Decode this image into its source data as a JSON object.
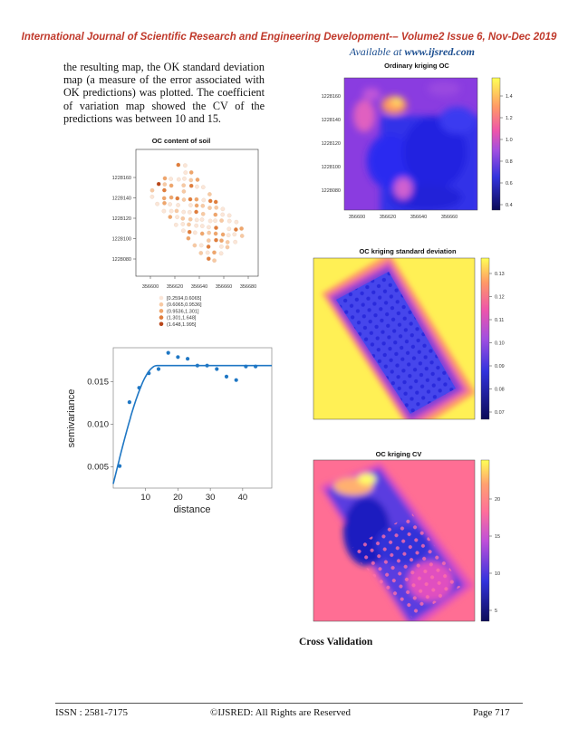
{
  "header": {
    "journal": "International Journal of Scientific Research and Engineering Development-– Volume2 Issue 6, Nov-Dec 2019",
    "available_prefix": "Available at ",
    "available_url": "www.ijsred.com"
  },
  "body_text": "the resulting map, the OK standard deviation map (a measure of the error associated with OK predictions) was plotted. The coefficient of variation map showed the CV of the predictions was between 10 and 15.",
  "fig_soil": {
    "title": "OC content of soil",
    "y_ticks": [
      "1228160",
      "1228140",
      "1228120",
      "1228100",
      "1228080"
    ],
    "x_ticks": [
      "356600",
      "356620",
      "356640",
      "356660",
      "356680"
    ],
    "legend": [
      "[0.2594,0.6065]",
      "(0.6065,0.9536]",
      "(0.9536,1.301]",
      "(1.301,1.648]",
      "(1.648,1.995]"
    ],
    "colors": [
      "#fbe6d8",
      "#f7c9a3",
      "#efa56b",
      "#e07d3c",
      "#b8461a"
    ]
  },
  "fig_ok": {
    "title": "Ordinary kriging OC",
    "y_ticks": [
      "1228160",
      "1228140",
      "1228120",
      "1228100",
      "1228080"
    ],
    "x_ticks": [
      "356600",
      "356620",
      "356640",
      "356660"
    ],
    "cbar_ticks": [
      "1.4",
      "1.2",
      "1.0",
      "0.8",
      "0.6",
      "0.4"
    ]
  },
  "fig_sd": {
    "title": "OC kriging standard deviation",
    "cbar_ticks": [
      "0.13",
      "0.12",
      "0.11",
      "0.10",
      "0.09",
      "0.08",
      "0.07"
    ]
  },
  "fig_cv": {
    "title": "OC kriging CV",
    "cbar_ticks": [
      "20",
      "15",
      "10",
      "5"
    ]
  },
  "chart_data": {
    "type": "scatter",
    "xlabel": "distance",
    "ylabel": "semivariance",
    "x_ticks": [
      "10",
      "20",
      "30",
      "40"
    ],
    "y_ticks": [
      "0.015",
      "0.010",
      "0.005"
    ],
    "xlim": [
      0,
      49
    ],
    "ylim": [
      0.0025,
      0.019
    ],
    "points_x": [
      2,
      5,
      8,
      11,
      14,
      17,
      20,
      23,
      26,
      29,
      32,
      35,
      38,
      41,
      44
    ],
    "points_y": [
      0.0051,
      0.0126,
      0.0143,
      0.016,
      0.0165,
      0.0184,
      0.0179,
      0.0177,
      0.0169,
      0.0169,
      0.0165,
      0.0156,
      0.0152,
      0.0168,
      0.0168
    ],
    "model": {
      "nugget": 0.003,
      "sill": 0.0169,
      "range": 13.5
    },
    "color": "#1f77c4"
  },
  "cross_validation_heading": "Cross Validation",
  "footer": {
    "issn": "ISSN : 2581-7175",
    "rights": "©IJSRED: All Rights are Reserved",
    "page": "Page 717"
  }
}
